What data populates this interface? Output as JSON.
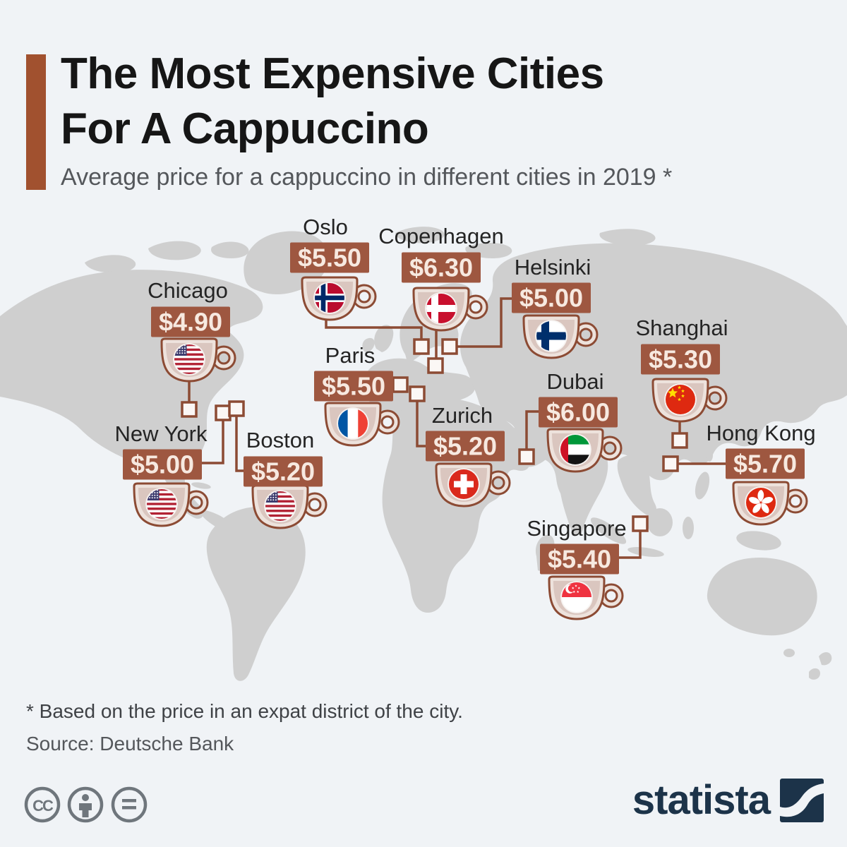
{
  "header": {
    "title_line1": "The Most Expensive Cities",
    "title_line2": "For A Cappuccino",
    "subtitle": "Average price for a cappuccino in different cities in 2019 *"
  },
  "footer": {
    "footnote": "* Based on the price in an expat district of the city.",
    "source": "Source: Deutsche Bank",
    "license_icons": [
      "cc-icon",
      "attribution-icon",
      "no-derivatives-icon"
    ],
    "brand": "statista"
  },
  "colors": {
    "background": "#F0F3F6",
    "accent_bar": "#A1512F",
    "price_box": "#9E5740",
    "price_text": "#F7E9E0",
    "connector": "#8C4B34",
    "map_land": "#CFCFCF",
    "logo_navy": "#1C3349"
  },
  "chart_data": {
    "type": "map",
    "title": "The Most Expensive Cities For A Cappuccino",
    "subtitle": "Average price for a cappuccino in different cities in 2019",
    "unit": "USD",
    "year": "2019",
    "cities": [
      {
        "name": "Oslo",
        "price_label": "$5.50",
        "value": 5.5,
        "country": "Norway",
        "flag": "norway"
      },
      {
        "name": "Copenhagen",
        "price_label": "$6.30",
        "value": 6.3,
        "country": "Denmark",
        "flag": "denmark"
      },
      {
        "name": "Helsinki",
        "price_label": "$5.00",
        "value": 5.0,
        "country": "Finland",
        "flag": "finland"
      },
      {
        "name": "Chicago",
        "price_label": "$4.90",
        "value": 4.9,
        "country": "United States",
        "flag": "usa"
      },
      {
        "name": "Paris",
        "price_label": "$5.50",
        "value": 5.5,
        "country": "France",
        "flag": "france"
      },
      {
        "name": "Shanghai",
        "price_label": "$5.30",
        "value": 5.3,
        "country": "China",
        "flag": "china"
      },
      {
        "name": "New York",
        "price_label": "$5.00",
        "value": 5.0,
        "country": "United States",
        "flag": "usa"
      },
      {
        "name": "Boston",
        "price_label": "$5.20",
        "value": 5.2,
        "country": "United States",
        "flag": "usa"
      },
      {
        "name": "Zurich",
        "price_label": "$5.20",
        "value": 5.2,
        "country": "Switzerland",
        "flag": "switzerland"
      },
      {
        "name": "Dubai",
        "price_label": "$6.00",
        "value": 6.0,
        "country": "United Arab Emirates",
        "flag": "uae"
      },
      {
        "name": "Hong Kong",
        "price_label": "$5.70",
        "value": 5.7,
        "country": "Hong Kong",
        "flag": "hongkong"
      },
      {
        "name": "Singapore",
        "price_label": "$5.40",
        "value": 5.4,
        "country": "Singapore",
        "flag": "singapore"
      }
    ]
  }
}
